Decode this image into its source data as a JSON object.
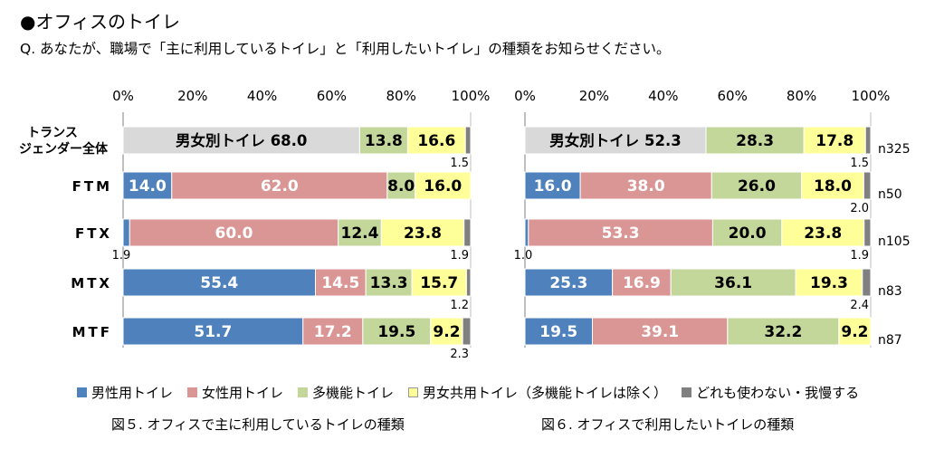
{
  "section_title": "●オフィスのトイレ",
  "question": "Q. あなたが、職場で「主に利用しているトイレ」と「利用したいトイレ」の種類をお知らせください。",
  "colors": {
    "male": "#4f81bd",
    "female": "#da9694",
    "multi": "#c4d79b",
    "unisex": "#ffff99",
    "none": "#808080",
    "gender_sep": "#d9d9d9"
  },
  "legend": [
    {
      "label": "男性用トイレ",
      "color_key": "male"
    },
    {
      "label": "女性用トイレ",
      "color_key": "female"
    },
    {
      "label": "多機能トイレ",
      "color_key": "multi"
    },
    {
      "label": "男女共用トイレ（多機能トイレは除く）",
      "color_key": "unisex"
    },
    {
      "label": "どれも使わない・我慢する",
      "color_key": "none"
    }
  ],
  "chart_data": [
    {
      "type": "stacked-bar-horizontal",
      "caption": "図５.  オフィスで主に利用しているトイレの種類",
      "xlim": [
        0,
        100
      ],
      "ticks": [
        "0%",
        "20%",
        "40%",
        "60%",
        "80%",
        "100%"
      ],
      "rows": [
        {
          "label": "トランス\nジェンダー全体",
          "segments": [
            {
              "key": "gender_sep",
              "value": 68.0,
              "label": "男女別トイレ 68.0"
            },
            {
              "key": "multi",
              "value": 13.8,
              "label": "13.8"
            },
            {
              "key": "unisex",
              "value": 16.6,
              "label": "16.6"
            },
            {
              "key": "none",
              "value": 1.5,
              "label": "1.5"
            }
          ]
        },
        {
          "label": "FTM",
          "segments": [
            {
              "key": "male",
              "value": 14.0,
              "label": "14.0"
            },
            {
              "key": "female",
              "value": 62.0,
              "label": "62.0"
            },
            {
              "key": "multi",
              "value": 8.0,
              "label": "8.0"
            },
            {
              "key": "unisex",
              "value": 16.0,
              "label": "16.0"
            },
            {
              "key": "none",
              "value": 0,
              "label": ""
            }
          ]
        },
        {
          "label": "FTX",
          "segments": [
            {
              "key": "male",
              "value": 1.9,
              "label": "1.9"
            },
            {
              "key": "female",
              "value": 60.0,
              "label": "60.0"
            },
            {
              "key": "multi",
              "value": 12.4,
              "label": "12.4"
            },
            {
              "key": "unisex",
              "value": 23.8,
              "label": "23.8"
            },
            {
              "key": "none",
              "value": 1.9,
              "label": "1.9"
            }
          ]
        },
        {
          "label": "MTX",
          "segments": [
            {
              "key": "male",
              "value": 55.4,
              "label": "55.4"
            },
            {
              "key": "female",
              "value": 14.5,
              "label": "14.5"
            },
            {
              "key": "multi",
              "value": 13.3,
              "label": "13.3"
            },
            {
              "key": "unisex",
              "value": 15.7,
              "label": "15.7"
            },
            {
              "key": "none",
              "value": 1.2,
              "label": "1.2"
            }
          ]
        },
        {
          "label": "MTF",
          "segments": [
            {
              "key": "male",
              "value": 51.7,
              "label": "51.7"
            },
            {
              "key": "female",
              "value": 17.2,
              "label": "17.2"
            },
            {
              "key": "multi",
              "value": 19.5,
              "label": "19.5"
            },
            {
              "key": "unisex",
              "value": 9.2,
              "label": "9.2"
            },
            {
              "key": "none",
              "value": 2.3,
              "label": "2.3"
            }
          ]
        }
      ]
    },
    {
      "type": "stacked-bar-horizontal",
      "caption": "図６.  オフィスで利用したいトイレの種類",
      "xlim": [
        0,
        100
      ],
      "ticks": [
        "0%",
        "20%",
        "40%",
        "60%",
        "80%",
        "100%"
      ],
      "rows": [
        {
          "n": "n325",
          "segments": [
            {
              "key": "gender_sep",
              "value": 52.3,
              "label": "男女別トイレ 52.3"
            },
            {
              "key": "multi",
              "value": 28.3,
              "label": "28.3"
            },
            {
              "key": "unisex",
              "value": 17.8,
              "label": "17.8"
            },
            {
              "key": "none",
              "value": 1.5,
              "label": "1.5"
            }
          ]
        },
        {
          "n": "n50",
          "segments": [
            {
              "key": "male",
              "value": 16.0,
              "label": "16.0"
            },
            {
              "key": "female",
              "value": 38.0,
              "label": "38.0"
            },
            {
              "key": "multi",
              "value": 26.0,
              "label": "26.0"
            },
            {
              "key": "unisex",
              "value": 18.0,
              "label": "18.0"
            },
            {
              "key": "none",
              "value": 2.0,
              "label": "2.0"
            }
          ]
        },
        {
          "n": "n105",
          "segments": [
            {
              "key": "male",
              "value": 1.0,
              "label": "1.0"
            },
            {
              "key": "female",
              "value": 53.3,
              "label": "53.3"
            },
            {
              "key": "multi",
              "value": 20.0,
              "label": "20.0"
            },
            {
              "key": "unisex",
              "value": 23.8,
              "label": "23.8"
            },
            {
              "key": "none",
              "value": 1.9,
              "label": "1.9"
            }
          ]
        },
        {
          "n": "n83",
          "segments": [
            {
              "key": "male",
              "value": 25.3,
              "label": "25.3"
            },
            {
              "key": "female",
              "value": 16.9,
              "label": "16.9"
            },
            {
              "key": "multi",
              "value": 36.1,
              "label": "36.1"
            },
            {
              "key": "unisex",
              "value": 19.3,
              "label": "19.3"
            },
            {
              "key": "none",
              "value": 2.4,
              "label": "2.4"
            }
          ]
        },
        {
          "n": "n87",
          "segments": [
            {
              "key": "male",
              "value": 19.5,
              "label": "19.5"
            },
            {
              "key": "female",
              "value": 39.1,
              "label": "39.1"
            },
            {
              "key": "multi",
              "value": 32.2,
              "label": "32.2"
            },
            {
              "key": "unisex",
              "value": 9.2,
              "label": "9.2"
            },
            {
              "key": "none",
              "value": 0,
              "label": ""
            }
          ]
        }
      ]
    }
  ]
}
